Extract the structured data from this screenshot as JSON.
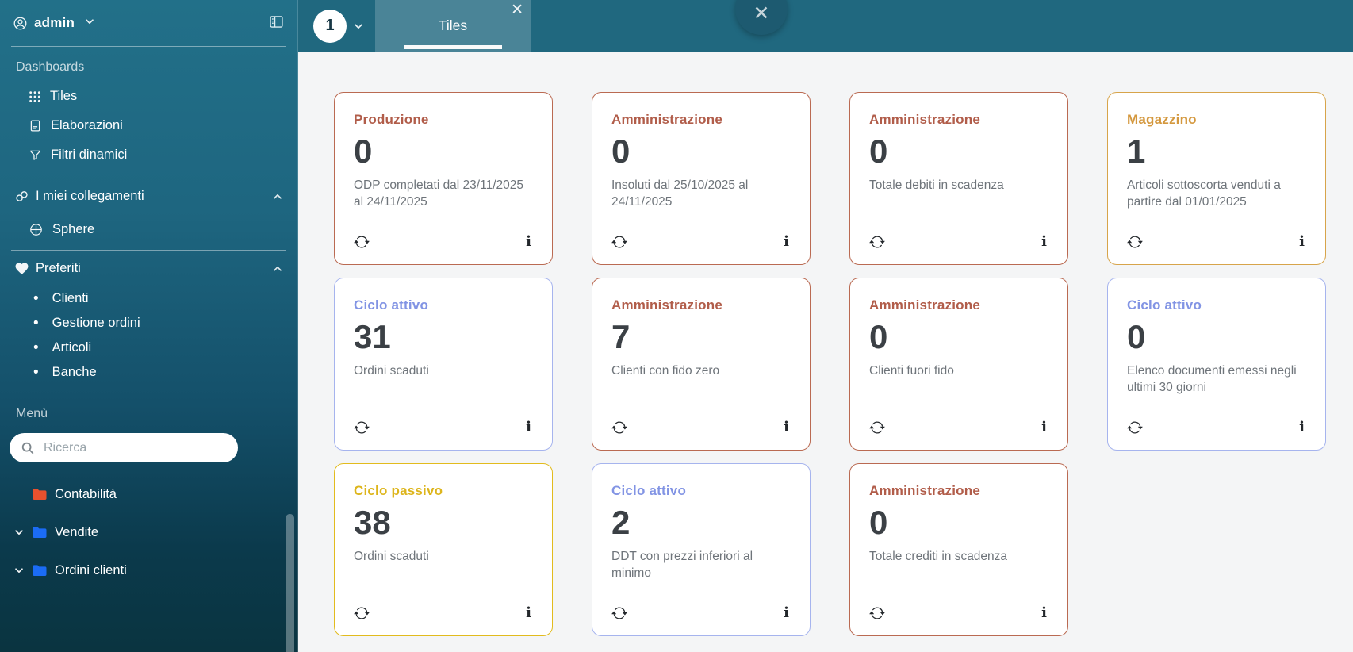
{
  "glyphs": {
    "bullet": "•",
    "info": "i",
    "close": "✕"
  },
  "palette": {
    "red": {
      "title": "#b15d4a",
      "border": "#ba6a52"
    },
    "orange": {
      "title": "#d4983e",
      "border": "#d7a44a"
    },
    "blue": {
      "title": "#8294e4",
      "border": "#a6b4ee"
    },
    "yellow": {
      "title": "#ddb51c",
      "border": "#e2bb1d"
    }
  },
  "sidebar": {
    "user": {
      "name": "admin",
      "avatar_icon": "person-circle-icon"
    },
    "sections": {
      "dashboards": {
        "label": "Dashboards",
        "items": [
          {
            "label": "Tiles",
            "icon": "grid-icon"
          },
          {
            "label": "Elaborazioni",
            "icon": "document-icon"
          },
          {
            "label": "Filtri dinamici",
            "icon": "funnel-icon"
          }
        ]
      },
      "collegamenti": {
        "label": "I miei collegamenti",
        "icon": "link-icon",
        "items": [
          {
            "label": "Sphere",
            "icon": "globe-icon"
          }
        ]
      },
      "preferiti": {
        "label": "Preferiti",
        "icon": "heart-icon",
        "items": [
          {
            "label": "Clienti"
          },
          {
            "label": "Gestione ordini"
          },
          {
            "label": "Articoli"
          },
          {
            "label": "Banche"
          }
        ]
      },
      "menu": {
        "label": "Menù",
        "search_placeholder": "Ricerca",
        "folders": [
          {
            "label": "Contabilità",
            "folder_color": "#e8512e",
            "expandable": false
          },
          {
            "label": "Vendite",
            "folder_color": "#1b6cf5",
            "expandable": true
          },
          {
            "label": "Ordini clienti",
            "folder_color": "#1b6cf5",
            "expandable": true
          }
        ]
      }
    }
  },
  "topbar": {
    "badge": "1",
    "tab": {
      "label": "Tiles"
    }
  },
  "tiles": [
    {
      "category": "Produzione",
      "color": "red",
      "value": "0",
      "description": "ODP completati dal 23/11/2025 al 24/11/2025"
    },
    {
      "category": "Amministrazione",
      "color": "red",
      "value": "0",
      "description": "Insoluti dal 25/10/2025 al 24/11/2025"
    },
    {
      "category": "Amministrazione",
      "color": "red",
      "value": "0",
      "description": "Totale debiti in scadenza"
    },
    {
      "category": "Magazzino",
      "color": "orange",
      "value": "1",
      "description": "Articoli sottoscorta venduti a partire dal 01/01/2025"
    },
    {
      "category": "Ciclo attivo",
      "color": "blue",
      "value": "31",
      "description": "Ordini scaduti"
    },
    {
      "category": "Amministrazione",
      "color": "red",
      "value": "7",
      "description": "Clienti con fido zero"
    },
    {
      "category": "Amministrazione",
      "color": "red",
      "value": "0",
      "description": "Clienti fuori fido"
    },
    {
      "category": "Ciclo attivo",
      "color": "blue",
      "value": "0",
      "description": "Elenco documenti emessi negli ultimi 30 giorni"
    },
    {
      "category": "Ciclo passivo",
      "color": "yellow",
      "value": "38",
      "description": "Ordini scaduti"
    },
    {
      "category": "Ciclo attivo",
      "color": "blue",
      "value": "2",
      "description": "DDT con prezzi inferiori al minimo"
    },
    {
      "category": "Amministrazione",
      "color": "red",
      "value": "0",
      "description": "Totale crediti in scadenza"
    }
  ]
}
